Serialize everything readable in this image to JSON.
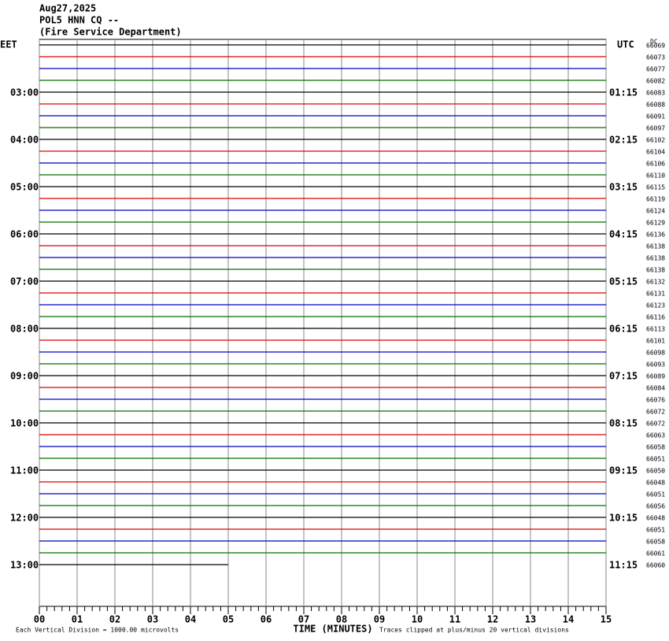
{
  "chart_data": {
    "type": "helicorder",
    "title_lines": [
      "Aug27,2025",
      "POL5 HNN CQ --",
      "(Fire Service Department)"
    ],
    "left_axis_label": "EET",
    "right_axis_label": "UTC",
    "dc_header": "DC",
    "xlabel": "TIME (MINUTES)",
    "footer_left": "Each Vertical Division = 1000.00 microvolts",
    "footer_right": "Traces clipped at plus/minus 20 vertical divisions",
    "xlim": [
      0,
      15
    ],
    "xticks": [
      {
        "value": 0,
        "label": "00"
      },
      {
        "value": 1,
        "label": "01"
      },
      {
        "value": 2,
        "label": "02"
      },
      {
        "value": 3,
        "label": "03"
      },
      {
        "value": 4,
        "label": "04"
      },
      {
        "value": 5,
        "label": "05"
      },
      {
        "value": 6,
        "label": "06"
      },
      {
        "value": 7,
        "label": "07"
      },
      {
        "value": 8,
        "label": "08"
      },
      {
        "value": 9,
        "label": "09"
      },
      {
        "value": 10,
        "label": "10"
      },
      {
        "value": 11,
        "label": "11"
      },
      {
        "value": 12,
        "label": "12"
      },
      {
        "value": 13,
        "label": "13"
      },
      {
        "value": 14,
        "label": "14"
      },
      {
        "value": 15,
        "label": "15"
      }
    ],
    "trace_colors": [
      "#000000",
      "#e00000",
      "#0000c0",
      "#007000"
    ],
    "last_trace_end": 5,
    "left_labels": [
      null,
      null,
      null,
      null,
      "03:00",
      null,
      null,
      null,
      "04:00",
      null,
      null,
      null,
      "05:00",
      null,
      null,
      null,
      "06:00",
      null,
      null,
      null,
      "07:00",
      null,
      null,
      null,
      "08:00",
      null,
      null,
      null,
      "09:00",
      null,
      null,
      null,
      "10:00",
      null,
      null,
      null,
      "11:00",
      null,
      null,
      null,
      "12:00",
      null,
      null,
      null,
      "13:00"
    ],
    "right_labels": [
      null,
      null,
      null,
      null,
      "01:15",
      null,
      null,
      null,
      "02:15",
      null,
      null,
      null,
      "03:15",
      null,
      null,
      null,
      "04:15",
      null,
      null,
      null,
      "05:15",
      null,
      null,
      null,
      "06:15",
      null,
      null,
      null,
      "07:15",
      null,
      null,
      null,
      "08:15",
      null,
      null,
      null,
      "09:15",
      null,
      null,
      null,
      "10:15",
      null,
      null,
      null,
      "11:15"
    ],
    "dc_offsets": [
      66069,
      66073,
      66077,
      66082,
      66083,
      66088,
      66091,
      66097,
      66102,
      66104,
      66106,
      66110,
      66115,
      66119,
      66124,
      66129,
      66136,
      66138,
      66138,
      66138,
      66132,
      66131,
      66123,
      66116,
      66113,
      66101,
      66098,
      66093,
      66089,
      66084,
      66076,
      66072,
      66072,
      66063,
      66058,
      66051,
      66050,
      66048,
      66051,
      66056,
      66048,
      66051,
      66058,
      66061,
      66060
    ]
  }
}
